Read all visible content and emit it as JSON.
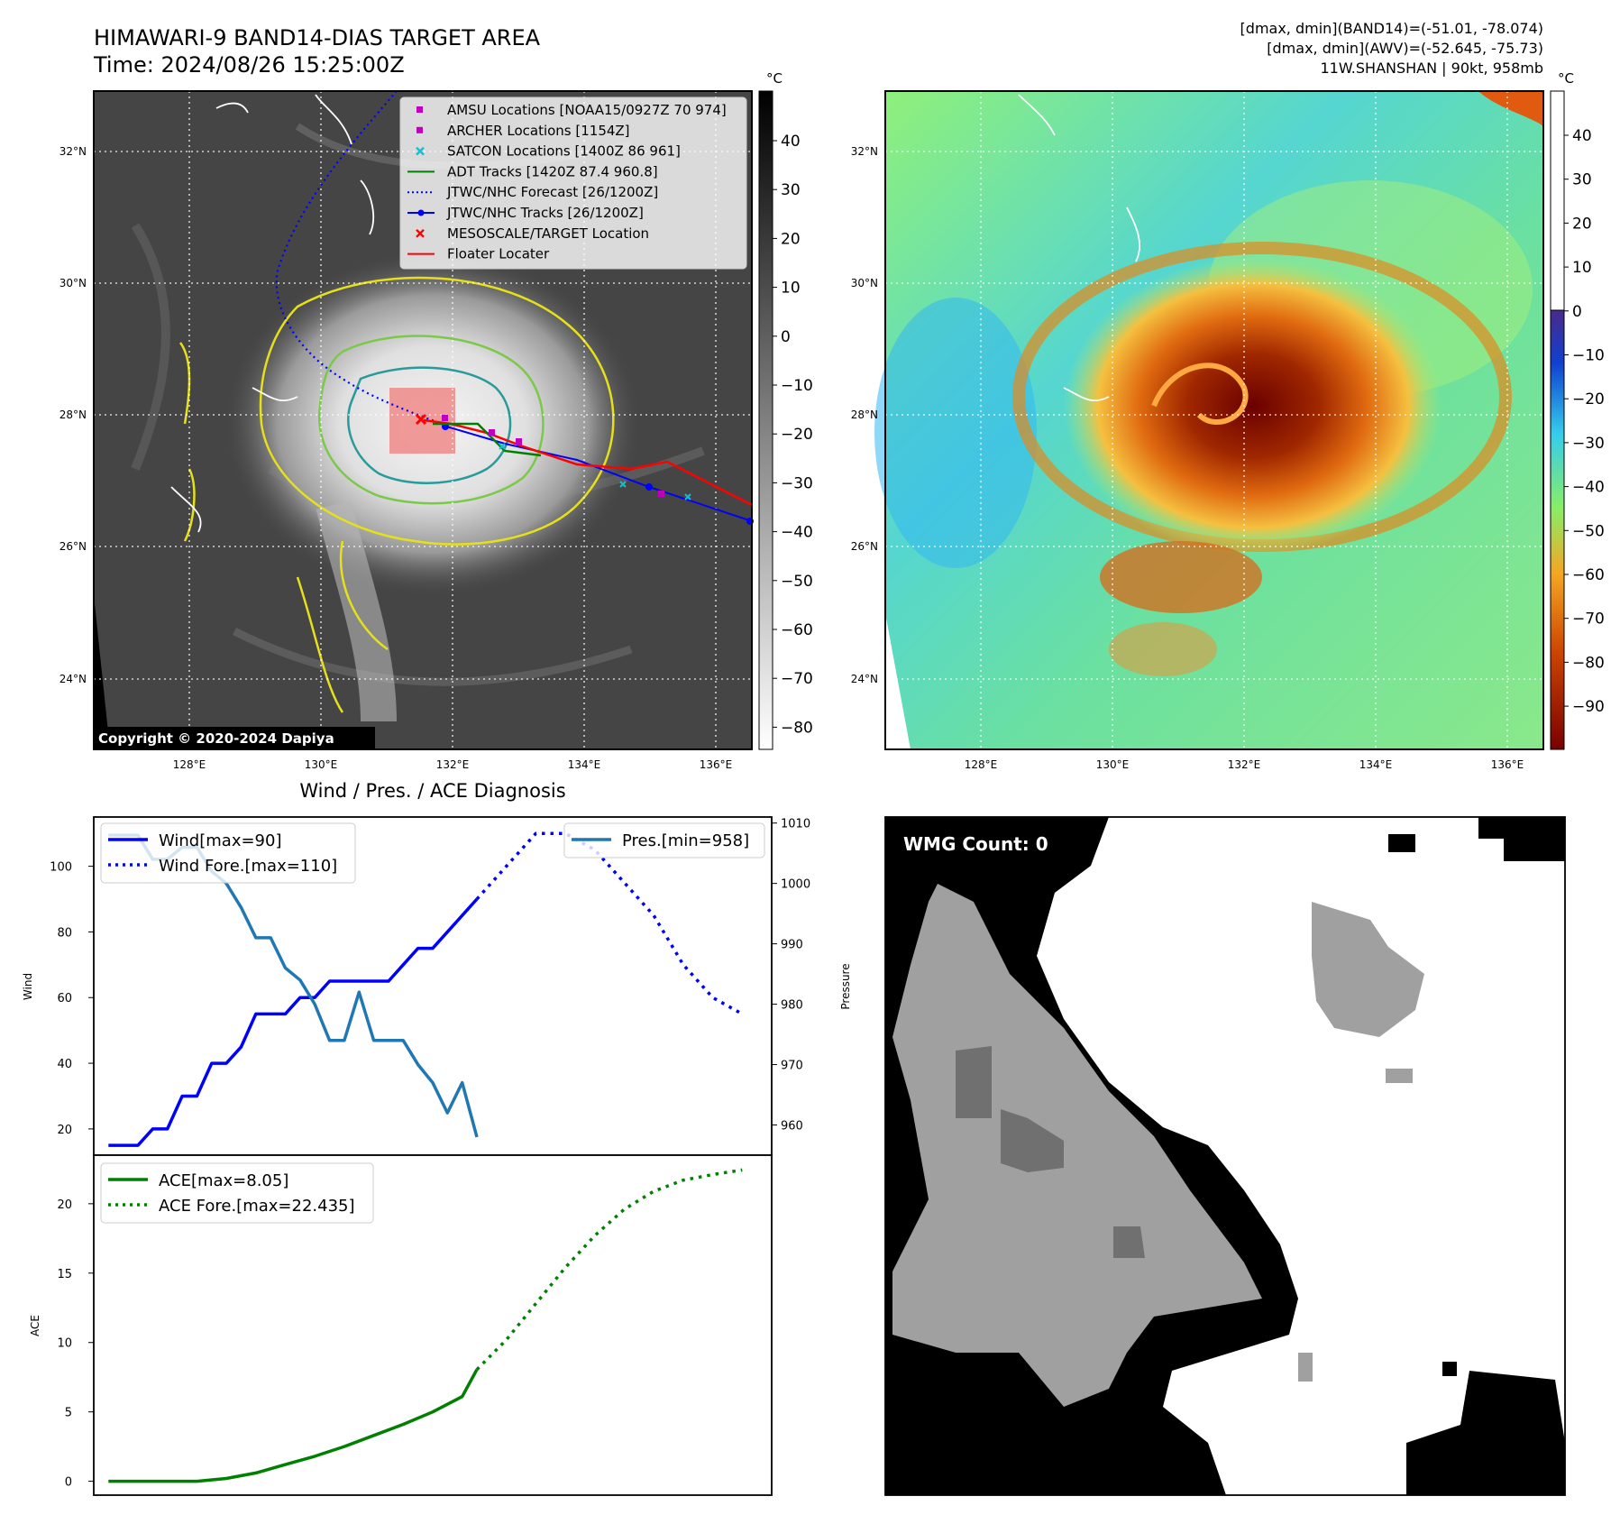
{
  "header_left": {
    "title": "HIMAWARI-9 BAND14-DIAS TARGET AREA",
    "time": "Time: 2024/08/26 15:25:00Z"
  },
  "header_right": {
    "line1": "[dmax, dmin](BAND14)=(-51.01, -78.074)",
    "line2": "[dmax, dmin](AWV)=(-52.645, -75.73)",
    "line3": "11W.SHANSHAN | 90kt, 958mb"
  },
  "map": {
    "lat_labels": [
      "32°N",
      "30°N",
      "28°N",
      "26°N",
      "24°N"
    ],
    "lon_labels": [
      "128°E",
      "130°E",
      "132°E",
      "134°E",
      "136°E"
    ],
    "copyright": "Copyright © 2020-2024 Dapiya",
    "legend": [
      {
        "label": "AMSU Locations [NOAA15/0927Z 70 974]",
        "kind": "square",
        "color": "#bf00bf"
      },
      {
        "label": "ARCHER Locations [1154Z]",
        "kind": "square",
        "color": "#bf00bf"
      },
      {
        "label": "SATCON Locations [1400Z 86 961]",
        "kind": "x",
        "color": "#17becf"
      },
      {
        "label": "ADT Tracks [1420Z 87.4 960.8]",
        "kind": "line",
        "color": "#008000"
      },
      {
        "label": "JTWC/NHC Forecast [26/1200Z]",
        "kind": "dotted",
        "color": "#0000ff"
      },
      {
        "label": "JTWC/NHC Tracks [26/1200Z]",
        "kind": "line-dot",
        "color": "#0000ff"
      },
      {
        "label": "MESOSCALE/TARGET Location",
        "kind": "x",
        "color": "#ff0000"
      },
      {
        "label": "Floater Locater",
        "kind": "line",
        "color": "#ff0000"
      }
    ]
  },
  "colorbar_left": {
    "unit": "°C",
    "ticks": [
      "40",
      "30",
      "20",
      "10",
      "0",
      "−10",
      "−20",
      "−30",
      "−40",
      "−50",
      "−60",
      "−70",
      "−80"
    ]
  },
  "colorbar_right": {
    "unit": "°C",
    "ticks": [
      "40",
      "30",
      "20",
      "10",
      "0",
      "−10",
      "−20",
      "−30",
      "−40",
      "−50",
      "−60",
      "−70",
      "−80",
      "−90"
    ]
  },
  "wmg": {
    "label": "WMG Count: 0"
  },
  "chart_data": [
    {
      "type": "line",
      "title": "Wind / Pres. / ACE Diagnosis",
      "ylabel": "Wind",
      "ylim": [
        12,
        115
      ],
      "yticks": [
        20,
        40,
        60,
        80,
        100
      ],
      "series": [
        {
          "name": "Wind[max=90]",
          "style": "solid",
          "color": "#0000ff",
          "x": [
            0,
            1,
            2,
            3,
            4,
            5,
            6,
            7,
            8,
            9,
            10,
            11,
            12,
            13,
            14,
            15,
            16,
            17,
            18,
            19,
            20,
            21,
            22,
            23,
            24,
            25
          ],
          "values": [
            15,
            15,
            15,
            20,
            20,
            30,
            30,
            40,
            40,
            45,
            55,
            55,
            55,
            60,
            60,
            65,
            65,
            65,
            65,
            65,
            70,
            75,
            75,
            80,
            85,
            90
          ]
        },
        {
          "name": "Wind Fore.[max=110]",
          "style": "dotted",
          "color": "#0000ff",
          "x": [
            25,
            27,
            29,
            31,
            33,
            35,
            37,
            39,
            41,
            43
          ],
          "values": [
            90,
            100,
            110,
            110,
            105,
            95,
            85,
            70,
            60,
            55
          ]
        }
      ]
    },
    {
      "type": "line",
      "ylabel": "Pressure",
      "ylim": [
        955,
        1011
      ],
      "yticks": [
        960,
        970,
        980,
        990,
        1000,
        1010
      ],
      "series": [
        {
          "name": "Pres.[min=958]",
          "style": "solid",
          "color": "#1f77b4",
          "x": [
            0,
            1,
            2,
            3,
            4,
            5,
            6,
            7,
            8,
            9,
            10,
            11,
            12,
            13,
            14,
            15,
            16,
            17,
            18,
            19,
            20,
            21,
            22,
            23,
            24,
            25
          ],
          "values": [
            1008,
            1008,
            1008,
            1004,
            1004,
            1006,
            1006,
            1002,
            1000,
            996,
            991,
            991,
            986,
            984,
            980,
            974,
            974,
            982,
            974,
            974,
            974,
            970,
            967,
            962,
            967,
            958
          ]
        }
      ]
    },
    {
      "type": "line",
      "ylabel": "ACE",
      "ylim": [
        -1,
        23.5
      ],
      "yticks": [
        0,
        5,
        10,
        15,
        20
      ],
      "series": [
        {
          "name": "ACE[max=8.05]",
          "style": "solid",
          "color": "#008000",
          "x": [
            0,
            2,
            4,
            6,
            8,
            10,
            12,
            14,
            16,
            18,
            20,
            22,
            24,
            25
          ],
          "values": [
            0,
            0,
            0,
            0,
            0.2,
            0.6,
            1.2,
            1.8,
            2.5,
            3.3,
            4.1,
            5.0,
            6.1,
            8.05
          ]
        },
        {
          "name": "ACE Fore.[max=22.435]",
          "style": "dotted",
          "color": "#008000",
          "x": [
            25,
            27,
            29,
            31,
            33,
            35,
            37,
            39,
            41,
            43
          ],
          "values": [
            8.05,
            10.2,
            12.8,
            15.4,
            17.7,
            19.6,
            20.9,
            21.7,
            22.1,
            22.435
          ]
        }
      ]
    }
  ]
}
